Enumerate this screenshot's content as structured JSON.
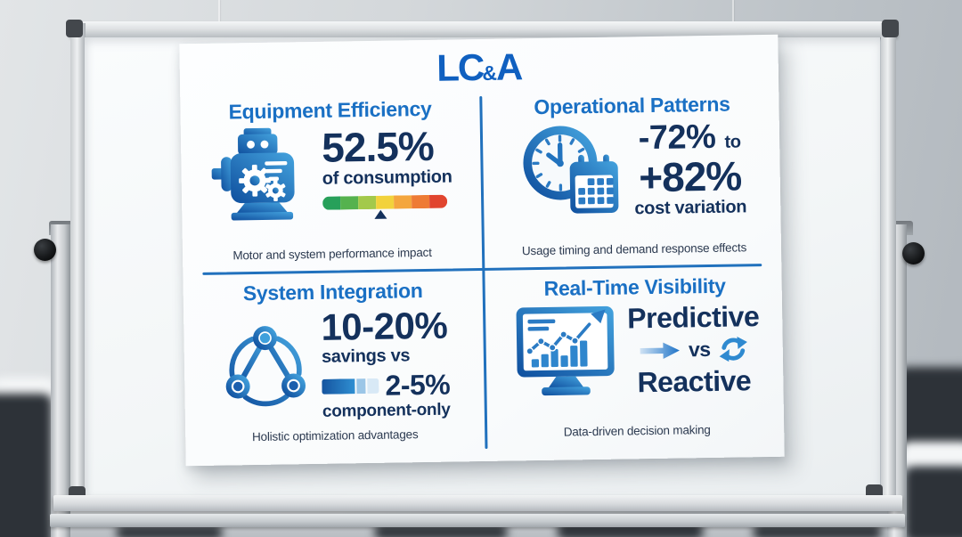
{
  "logo": {
    "left": "LC",
    "amp": "&",
    "right": "A"
  },
  "colors": {
    "title_blue": "#1a70c4",
    "stat_navy": "#14315c",
    "divider_blue": "#2171bd",
    "logo_blue": "#1060c0",
    "icon_gradient_from": "#0f4f9e",
    "icon_gradient_to": "#44a3de"
  },
  "gauge": {
    "segment_colors": [
      "#27a05a",
      "#55b24e",
      "#a3c94b",
      "#f2d23c",
      "#f4a63e",
      "#ee7b35",
      "#e1452f"
    ],
    "marker_percent": 46
  },
  "comparison_bar": {
    "segments": [
      {
        "from": "#15549f",
        "to": "#2f8fd2",
        "width": 57
      },
      {
        "from": "#9bc6e7",
        "width": 17
      },
      {
        "from": "#d8e9f6",
        "width": 20
      }
    ]
  },
  "icons": {
    "equipment": "motor-icon",
    "operational": "clock-calendar-icon",
    "integration": "network-icon",
    "visibility": "monitor-chart-icon",
    "direction": "arrow-right-icon",
    "cycle": "refresh-cycle-icon"
  },
  "quadrants": {
    "equipment": {
      "title": "Equipment Efficiency",
      "stat": "52.5%",
      "stat_sub": "of consumption",
      "caption": "Motor and system performance impact"
    },
    "operational": {
      "title": "Operational Patterns",
      "stat_from": "-72%",
      "stat_join": "to",
      "stat_to": "+82%",
      "stat_sub": "cost variation",
      "caption": "Usage timing and demand response effects"
    },
    "integration": {
      "title": "System Integration",
      "stat": "10-20%",
      "stat_sub": "savings vs",
      "stat_compare": "2-5%",
      "stat_compare_sub": "component-only",
      "caption": "Holistic optimization advantages"
    },
    "visibility": {
      "title": "Real-Time Visibility",
      "stat_top": "Predictive",
      "vs_label": "vs",
      "stat_bottom": "Reactive",
      "caption": "Data-driven decision making"
    }
  }
}
